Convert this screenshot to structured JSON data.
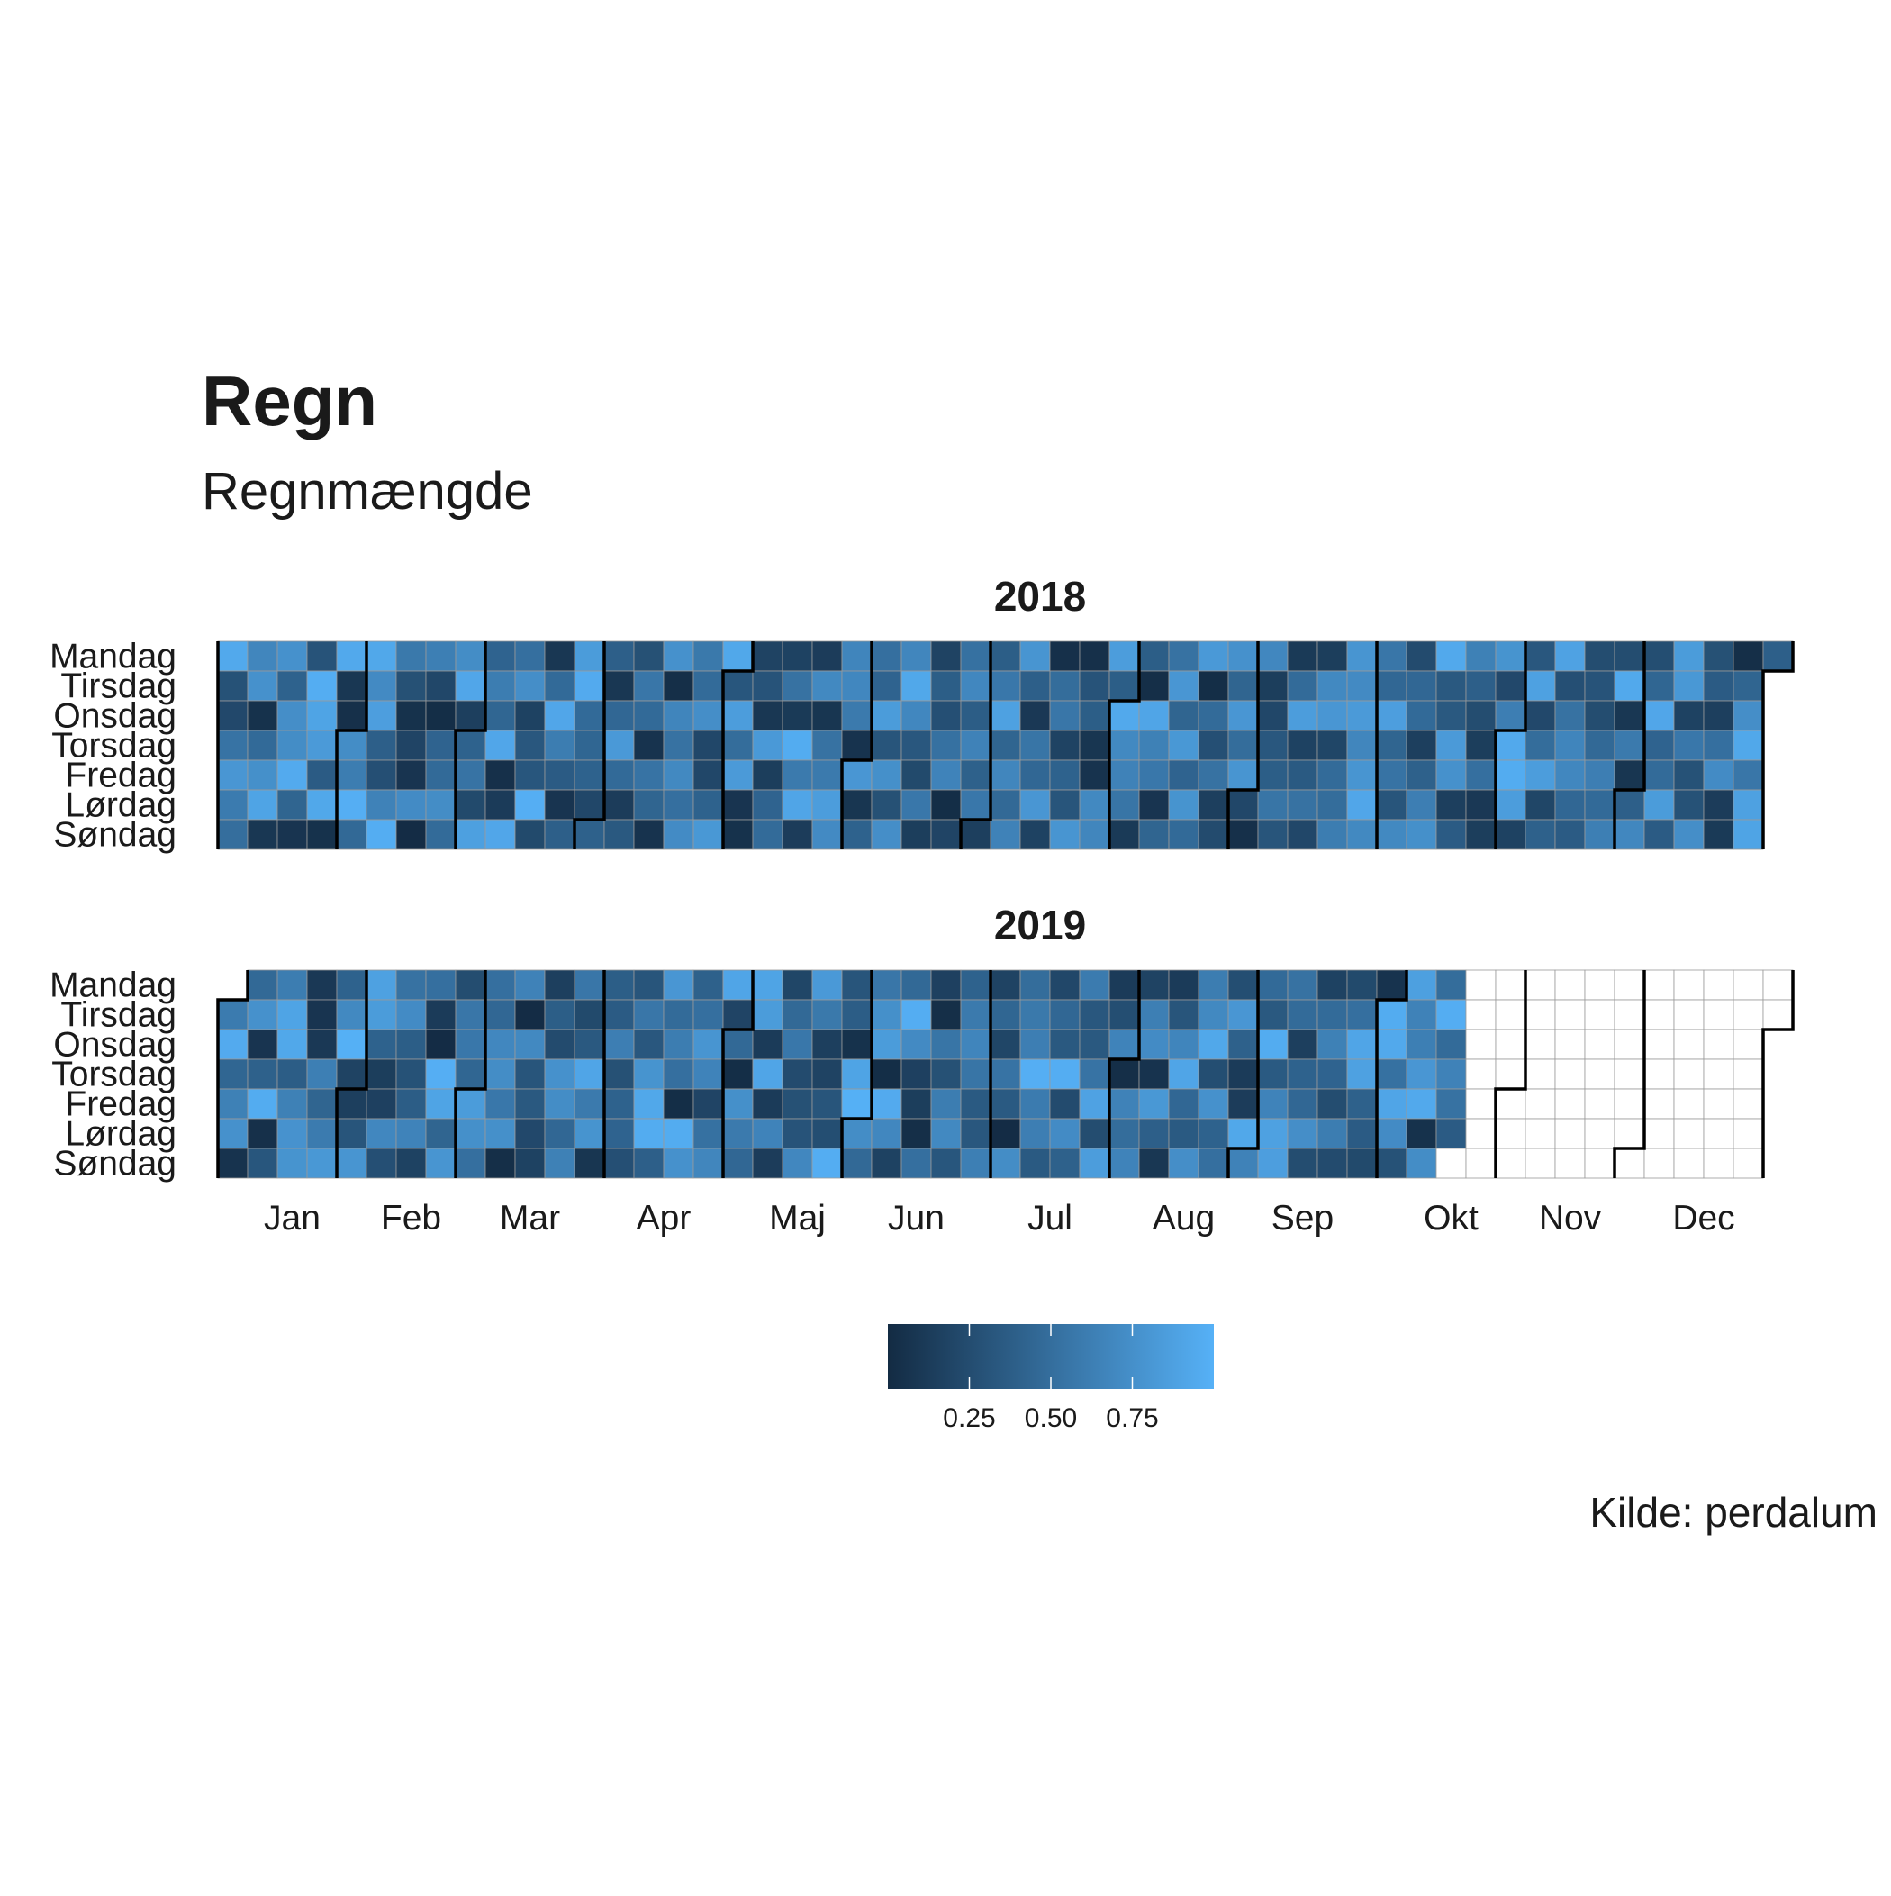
{
  "chart_data": {
    "type": "heatmap",
    "title": "Regn",
    "subtitle": "Regnmængde",
    "caption": "Kilde: perdalum",
    "weekdays": [
      "Mandag",
      "Tirsdag",
      "Onsdag",
      "Torsdag",
      "Fredag",
      "Lørdag",
      "Søndag"
    ],
    "months": [
      "Jan",
      "Feb",
      "Mar",
      "Apr",
      "Maj",
      "Jun",
      "Jul",
      "Aug",
      "Sep",
      "Okt",
      "Nov",
      "Dec"
    ],
    "color_scale": {
      "low": "#132B43",
      "high": "#56B1F7",
      "range": [
        0,
        1
      ],
      "ticks": [
        0.25,
        0.5,
        0.75
      ]
    },
    "legend_position": "bottom",
    "panels": [
      {
        "year": "2018",
        "values": [
          0.94,
          0.29,
          0.22,
          0.54,
          0.8,
          0.6,
          0.5,
          0.68,
          0.76,
          0.05,
          0.47,
          0.75,
          0.9,
          0.09,
          0.76,
          0.41,
          0.74,
          0.73,
          0.95,
          0.43,
          0.07,
          0.3,
          0.97,
          0.9,
          0.83,
          0.36,
          0.93,
          0.05,
          0.94,
          0.09,
          0.04,
          0.73,
          0.61,
          0.98,
          0.46,
          0.93,
          0.71,
          0.86,
          0.39,
          0.27,
          0.65,
          0.97,
          0.58,
          0.28,
          0.05,
          0.19,
          0.07,
          0.72,
          0.01,
          0.63,
          0.21,
          0.02,
          0.42,
          0.47,
          0.73,
          0.48,
          0.73,
          0.92,
          0.15,
          0.41,
          0.54,
          0.23,
          0.87,
          0.42,
          0.61,
          0.44,
          0.92,
          0.04,
          0.12,
          0.92,
          0.51,
          0.74,
          0.17,
          0.33,
          0.32,
          0.98,
          0.23,
          0.09,
          0.47,
          0.92,
          0.61,
          0.36,
          0.07,
          0.39,
          0.84,
          0.95,
          0.47,
          0.44,
          0.41,
          0.21,
          0.4,
          0.39,
          0.09,
          0.45,
          0.82,
          0.47,
          0.13,
          0.34,
          0.28,
          0.56,
          0.47,
          0.06,
          0.54,
          0.43,
          0.06,
          0.76,
          0.03,
          0.67,
          0.53,
          0.7,
          0.51,
          0.72,
          0.58,
          0.48,
          0.74,
          0.21,
          0.21,
          0.41,
          0.81,
          0.93,
          0.32,
          0.85,
          0.49,
          0.83,
          0.07,
          0.05,
          0.18,
          0.3,
          0.09,
          0.82,
          0.14,
          0.42,
          0.48,
          0.17,
          0.53,
          0.11,
          0.96,
          0.59,
          0.91,
          0.13,
          0.13,
          0.7,
          0.08,
          0.53,
          0.59,
          0.85,
          0.71,
          0.67,
          0.69,
          0.59,
          0.06,
          0.8,
          0.08,
          0.41,
          0.51,
          0.42,
          0.84,
          0.31,
          0.75,
          0.28,
          0.74,
          0.68,
          0.93,
          0.69,
          0.33,
          0.23,
          0.57,
          0.14,
          0.18,
          0.38,
          0.27,
          0.52,
          0.66,
          0.02,
          0.19,
          0.52,
          0.69,
          0.37,
          0.65,
          0.4,
          0.57,
          0.15,
          0.38,
          0.57,
          0.88,
          0.43,
          0.68,
          0.46,
          0.65,
          0.79,
          0.39,
          0.1,
          0.55,
          0.45,
          0.8,
          0.17,
          0.04,
          0.49,
          0.56,
          0.18,
          0.41,
          0.31,
          0.79,
          0.04,
          0.3,
          0.38,
          0.08,
          0.06,
          0.7,
          0.68,
          0.85,
          0.38,
          0.94,
          0.7,
          0.65,
          0.55,
          0.11,
          0.38,
          0.03,
          0.91,
          0.64,
          0.57,
          0.07,
          0.43,
          0.53,
          0.8,
          0.43,
          0.81,
          0.42,
          0.78,
          0.47,
          0.82,
          0.02,
          0.48,
          0.27,
          0.53,
          0.15,
          0.24,
          0.76,
          0.43,
          0.8,
          0.49,
          0.79,
          0.21,
          0.04,
          0.69,
          0.14,
          0.21,
          0.33,
          0.38,
          0.55,
          0.31,
          0.11,
          0.48,
          0.85,
          0.17,
          0.35,
          0.53,
          0.21,
          0.14,
          0.7,
          0.8,
          0.2,
          0.48,
          0.49,
          0.61,
          0.79,
          0.71,
          0.83,
          0.68,
          0.79,
          0.92,
          0.7,
          0.56,
          0.45,
          0.86,
          0.43,
          0.54,
          0.31,
          0.7,
          0.24,
          0.45,
          0.47,
          0.15,
          0.4,
          0.62,
          0.75,
          0.94,
          0.34,
          0.34,
          0.83,
          0.76,
          0.15,
          0.36,
          0.64,
          0.39,
          0.25,
          0.14,
          0.51,
          0.1,
          0.14,
          0.78,
          0.22,
          0.62,
          0.94,
          0.96,
          0.85,
          0.17,
          0.33,
          0.88,
          0.22,
          0.49,
          0.85,
          0.2,
          0.4,
          0.89,
          0.27,
          0.53,
          0.67,
          0.69,
          0.45,
          0.36,
          0.25,
          0.3,
          0.25,
          0.46,
          0.62,
          0.47,
          0.63,
          0.25,
          0.94,
          0.09,
          0.59,
          0.08,
          0.39,
          0.69,
          0.26,
          0.44,
          0.92,
          0.42,
          0.48,
          0.84,
          0.36,
          0.84,
          0.81,
          0.17,
          0.57,
          0.29,
          0.29,
          0.74,
          0.28,
          0.36,
          0.15,
          0.51,
          0.72,
          0.13,
          0.11,
          0.03,
          0.43,
          0.74,
          0.93,
          0.56,
          0.88,
          0.9,
          0.39
        ]
      },
      {
        "year": "2019",
        "values": [
          0.6,
          0.95,
          0.44,
          0.64,
          0.76,
          0.06,
          0.46,
          0.76,
          0.07,
          0.4,
          0.96,
          0.04,
          0.32,
          0.61,
          0.9,
          0.93,
          0.37,
          0.64,
          0.77,
          0.78,
          0.1,
          0.07,
          0.1,
          0.63,
          0.43,
          0.6,
          0.81,
          0.41,
          0.7,
          0.99,
          0.18,
          0.15,
          0.31,
          0.79,
          0.88,
          0.84,
          0.41,
          0.14,
          0.16,
          0.69,
          0.27,
          0.53,
          0.72,
          0.38,
          0.29,
          0.37,
          0.66,
          0.17,
          0.51,
          0.12,
          0.01,
          0.98,
          0.9,
          0.43,
          0.79,
          0.25,
          0.56,
          0.57,
          0.44,
          0.84,
          0.75,
          0.51,
          0.51,
          0.45,
          0.69,
          0.73,
          0.57,
          0.75,
          0.03,
          0.65,
          0.01,
          0.7,
          0.31,
          0.34,
          0.22,
          0.17,
          0.15,
          0.38,
          0.24,
          0.76,
          0.73,
          0.45,
          0.64,
          0.56,
          0.23,
          0.34,
          0.91,
          0.59,
          0.78,
          0.08,
          0.38,
          0.36,
          0.62,
          0.28,
          0.41,
          0.42,
          0.27,
          0.31,
          0.56,
          0.33,
          0.78,
          0.93,
          0.96,
          0.39,
          0.8,
          0.48,
          0.61,
          0.51,
          0.02,
          0.96,
          0.76,
          0.4,
          0.51,
          0.79,
          0.66,
          0.19,
          0.52,
          0.68,
          0.91,
          0.19,
          0.46,
          0.02,
          0.75,
          0.59,
          0.45,
          0.9,
          0.84,
          0.12,
          0.91,
          0.12,
          0.66,
          0.13,
          0.2,
          0.46,
          0.57,
          0.24,
          0.28,
          0.3,
          0.69,
          0.82,
          0.58,
          0.15,
          0.18,
          0.31,
          0.26,
          0.97,
          0.31,
          0.37,
          0.05,
          0.9,
          0.99,
          0.73,
          0.46,
          0.56,
          0.75,
          0.84,
          0.02,
          0.95,
          0.69,
          0.17,
          0.46,
          0.97,
          0.71,
          0.16,
          0.14,
          0.03,
          0.51,
          0.16,
          0.03,
          0.55,
          0.28,
          0.61,
          0.7,
          0.32,
          0.41,
          0.59,
          0.67,
          0.55,
          0.35,
          0.33,
          0.63,
          0.18,
          0.44,
          0.2,
          0.54,
          0.35,
          0.01,
          0.73,
          0.49,
          0.58,
          0.62,
          0.98,
          0.6,
          0.62,
          0.35,
          0.21,
          0.45,
          0.34,
          0.97,
          0.24,
          0.72,
          0.4,
          0.6,
          0.33,
          0.34,
          0.54,
          0.89,
          0.25,
          0.85,
          0.12,
          0.26,
          0.66,
          0.03,
          0.65,
          0.49,
          0.66,
          0.18,
          0.63,
          0.72,
          0.06,
          0.81,
          0.39,
          0.09,
          0.12,
          0.31,
          0.67,
          0.91,
          0.45,
          0.35,
          0.74,
          0.61,
          0.7,
          0.93,
          0.26,
          0.76,
          0.41,
          0.51,
          0.26,
          0.8,
          0.4,
          0.12,
          0.13,
          0.93,
          0.65,
          0.47,
          0.34,
          0.96,
          0.35,
          0.66,
          0.88,
          0.86,
          0.53,
          0.48,
          0.15,
          0.41,
          0.45,
          0.74,
          0.25,
          0.17,
          0.48,
          0.64,
          0.42,
          0.25,
          0.61,
          0.24,
          0.23,
          0.51,
          0.91,
          0.88,
          0.4,
          0.36,
          0.23,
          0.06,
          0.96,
          0.94,
          0.52,
          0.91,
          0.72,
          0.29,
          0.87,
          0.65,
          0.63,
          0.8,
          0.94,
          0.05,
          0.73,
          0.49,
          0.97,
          0.48,
          0.65,
          0.53,
          0.36
        ]
      }
    ]
  }
}
